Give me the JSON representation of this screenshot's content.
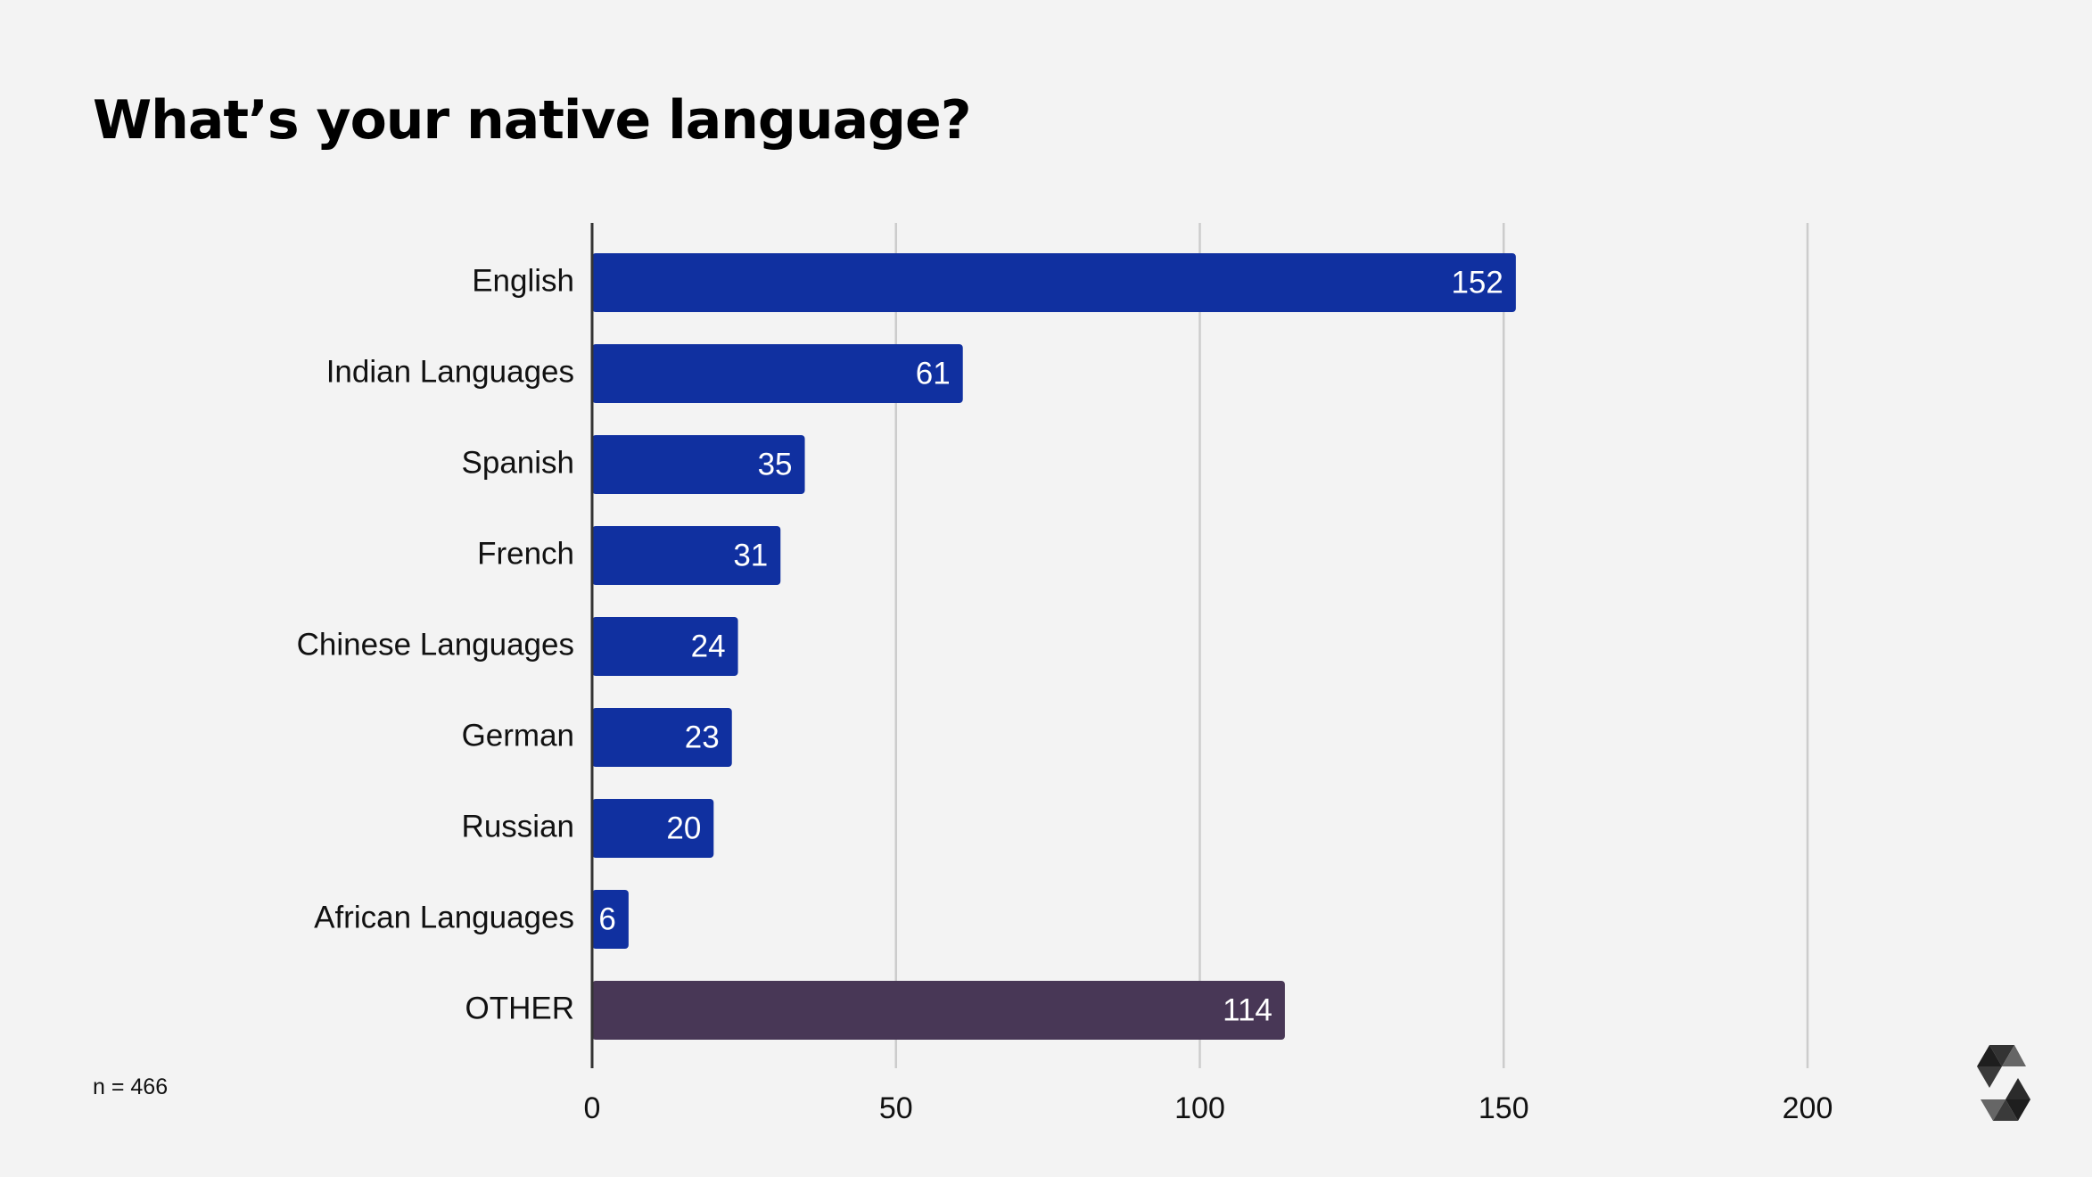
{
  "chart_data": {
    "type": "bar",
    "orientation": "horizontal",
    "title": "What’s your native language?",
    "note": "n = 466",
    "categories": [
      "English",
      "Indian Languages",
      "Spanish",
      "French",
      "Chinese Languages",
      "German",
      "Russian",
      "African Languages",
      "OTHER"
    ],
    "values": [
      152,
      61,
      35,
      31,
      24,
      23,
      20,
      6,
      114
    ],
    "xlim": [
      0,
      210
    ],
    "xticks": [
      0,
      50,
      100,
      150,
      200
    ],
    "grid": true,
    "colors": {
      "primary": "#1030a0",
      "other": "#483756",
      "grid": "#cccccc",
      "axis": "#333333"
    }
  },
  "logo": {
    "icon": "solidity-logo-icon"
  }
}
